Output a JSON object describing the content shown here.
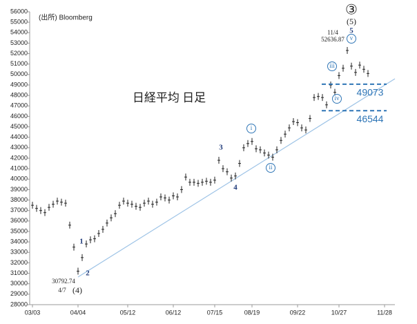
{
  "chart_data": {
    "type": "ohlc",
    "title": "日経平均 日足",
    "source": "(出所) Bloomberg",
    "color": "#222222",
    "categories": [
      "03/03",
      null,
      null,
      null,
      null,
      null,
      null,
      null,
      null,
      null,
      null,
      "04/04",
      null,
      null,
      null,
      null,
      null,
      null,
      null,
      null,
      null,
      null,
      null,
      "05/12",
      null,
      null,
      null,
      null,
      null,
      null,
      null,
      null,
      null,
      null,
      "06/12",
      null,
      null,
      null,
      null,
      null,
      null,
      null,
      null,
      null,
      "07/15",
      null,
      null,
      null,
      null,
      null,
      null,
      null,
      null,
      "08/19",
      null,
      null,
      null,
      null,
      null,
      null,
      null,
      null,
      null,
      null,
      "09/22",
      null,
      null,
      null,
      null,
      null,
      null,
      null,
      null,
      null,
      "10/27",
      null,
      null,
      null,
      null,
      null,
      null,
      null,
      null,
      null,
      null,
      "11/28"
    ],
    "values": [
      37500,
      37200,
      37000,
      36800,
      37300,
      37600,
      37900,
      37800,
      37700,
      35600,
      33500,
      31200,
      32500,
      33800,
      34200,
      34300,
      34800,
      35200,
      35800,
      36300,
      36700,
      37500,
      37900,
      37700,
      37600,
      37400,
      37300,
      37700,
      37900,
      37600,
      37800,
      38300,
      38200,
      38000,
      38400,
      38300,
      39000,
      40200,
      39700,
      39700,
      39600,
      39700,
      39800,
      39700,
      39900,
      41800,
      41000,
      40700,
      40100,
      40300,
      41500,
      43000,
      43400,
      43600,
      42900,
      42800,
      42500,
      42300,
      42100,
      42800,
      43700,
      44300,
      44900,
      45500,
      45400,
      44900,
      44700,
      45800,
      47800,
      47900,
      47800,
      47100,
      49000,
      48300,
      49900,
      50600,
      52300,
      50800,
      50200,
      50900,
      50500,
      50100,
      null,
      null,
      null,
      null
    ],
    "ylim": [
      28000,
      56000
    ],
    "yticks": [
      28000,
      29000,
      30000,
      31000,
      32000,
      33000,
      34000,
      35000,
      36000,
      37000,
      38000,
      39000,
      40000,
      41000,
      42000,
      43000,
      44000,
      45000,
      46000,
      47000,
      48000,
      49000,
      50000,
      51000,
      52000,
      53000,
      54000,
      55000,
      56000
    ],
    "levels": [
      {
        "value": 49073,
        "color": "#2e75b6"
      },
      {
        "value": 46544,
        "color": "#2e75b6"
      }
    ],
    "annotations": [
      "③",
      "(5)",
      "5",
      "11/4",
      "52636.87",
      "30792.74",
      "4/7",
      "(4)",
      "1",
      "2",
      "3",
      "4",
      "i",
      "ii",
      "iii",
      "iv",
      "v"
    ]
  }
}
